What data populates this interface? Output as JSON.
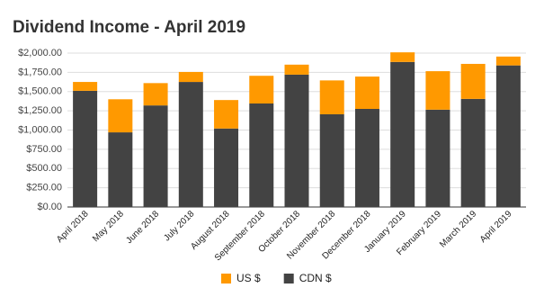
{
  "chart_data": {
    "type": "stacked_bar",
    "title": "Dividend Income - April 2019",
    "categories": [
      "April 2018",
      "May 2018",
      "June 2018",
      "July 2018",
      "August 2018",
      "September 2018",
      "October 2018",
      "November 2018",
      "December 2018",
      "January 2019",
      "February 2019",
      "March 2019",
      "April 2019"
    ],
    "series": [
      {
        "name": "US $",
        "color": "#ff9900",
        "values": [
          115,
          430,
          290,
          130,
          370,
          360,
          130,
          440,
          420,
          125,
          500,
          455,
          115
        ]
      },
      {
        "name": "CDN $",
        "color": "#434343",
        "values": [
          1510,
          970,
          1320,
          1625,
          1020,
          1345,
          1720,
          1205,
          1275,
          1885,
          1265,
          1405,
          1840
        ]
      }
    ],
    "ylim": [
      0,
      2000
    ],
    "yticks": [
      {
        "value": 0,
        "label": "$0.00"
      },
      {
        "value": 250,
        "label": "$250.00"
      },
      {
        "value": 500,
        "label": "$500.00"
      },
      {
        "value": 750,
        "label": "$750.00"
      },
      {
        "value": 1000,
        "label": "$1,000.00"
      },
      {
        "value": 1250,
        "label": "$1,250.00"
      },
      {
        "value": 1500,
        "label": "$1,500.00"
      },
      {
        "value": 1750,
        "label": "$1,750.00"
      },
      {
        "value": 2000,
        "label": "$2,000.00"
      }
    ],
    "grid": true
  }
}
